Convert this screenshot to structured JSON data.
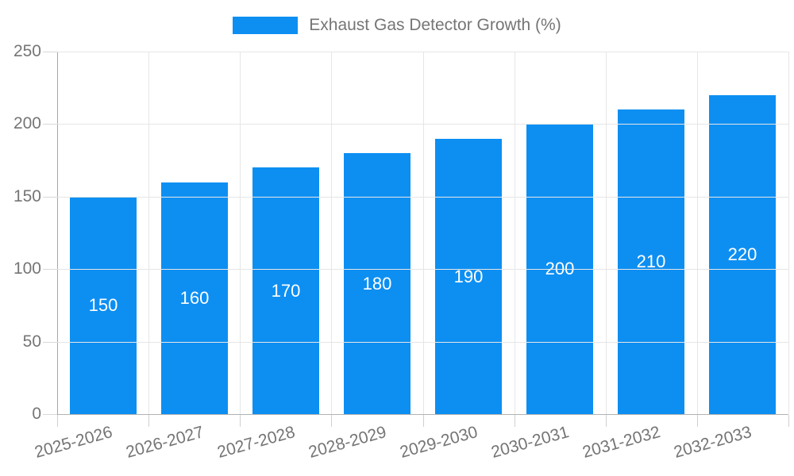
{
  "page": {
    "background_color": "#ffffff"
  },
  "legend": {
    "label": "Exhaust Gas Detector Growth (%)",
    "swatch_color": "#0d8ff2",
    "text_color": "#757575",
    "position": "top-center"
  },
  "chart_data": {
    "type": "bar",
    "title": "Exhaust Gas Detector Growth (%)",
    "categories": [
      "2025-2026",
      "2026-2027",
      "2027-2028",
      "2028-2029",
      "2029-2030",
      "2030-2031",
      "2031-2032",
      "2032-2033"
    ],
    "values": [
      150,
      160,
      170,
      180,
      190,
      200,
      210,
      220
    ],
    "xlabel": "",
    "ylabel": "",
    "ylim": [
      0,
      250
    ],
    "y_ticks": [
      0,
      50,
      100,
      150,
      200,
      250
    ],
    "grid": true,
    "legend_position": "top-center",
    "bar_color": "#0d8ff2",
    "value_label_color": "#ffffff",
    "axis_text_color": "#757575",
    "gridline_color": "#e6e6e6",
    "axis_line_color": "#a6a6a6"
  }
}
